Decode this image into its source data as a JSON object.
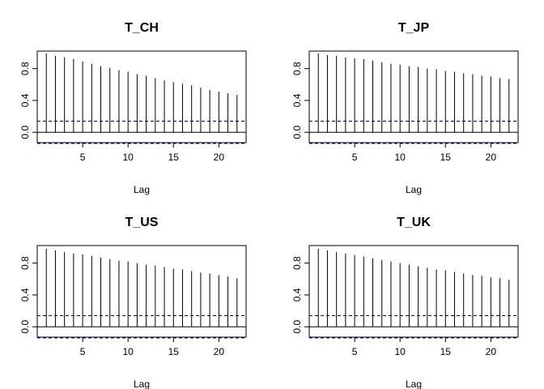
{
  "chart_data": [
    {
      "type": "bar",
      "title": "T_CH",
      "xlabel": "Lag",
      "ylabel": "",
      "xlim": [
        0,
        23
      ],
      "ylim": [
        -0.13,
        1.02
      ],
      "x_ticks": [
        5,
        10,
        15,
        20
      ],
      "y_ticks": [
        0.0,
        0.4,
        0.8
      ],
      "y_tick_labels": [
        "0.0",
        "0.4",
        "0.8"
      ],
      "grid": false,
      "lags": [
        1,
        2,
        3,
        4,
        5,
        6,
        7,
        8,
        9,
        10,
        11,
        12,
        13,
        14,
        15,
        16,
        17,
        18,
        19,
        20,
        21,
        22
      ],
      "values": [
        0.99,
        0.96,
        0.94,
        0.92,
        0.89,
        0.86,
        0.83,
        0.81,
        0.78,
        0.76,
        0.73,
        0.71,
        0.68,
        0.65,
        0.63,
        0.61,
        0.59,
        0.56,
        0.53,
        0.51,
        0.49,
        0.47
      ],
      "confidence_band": [
        0.14,
        -0.14
      ]
    },
    {
      "type": "bar",
      "title": "T_JP",
      "xlabel": "Lag",
      "ylabel": "",
      "xlim": [
        0,
        23
      ],
      "ylim": [
        -0.13,
        1.02
      ],
      "x_ticks": [
        5,
        10,
        15,
        20
      ],
      "y_ticks": [
        0.0,
        0.4,
        0.8
      ],
      "y_tick_labels": [
        "0.0",
        "0.4",
        "0.8"
      ],
      "grid": false,
      "lags": [
        1,
        2,
        3,
        4,
        5,
        6,
        7,
        8,
        9,
        10,
        11,
        12,
        13,
        14,
        15,
        16,
        17,
        18,
        19,
        20,
        21,
        22
      ],
      "values": [
        0.99,
        0.97,
        0.96,
        0.94,
        0.93,
        0.92,
        0.9,
        0.88,
        0.86,
        0.85,
        0.83,
        0.82,
        0.8,
        0.79,
        0.77,
        0.76,
        0.74,
        0.73,
        0.71,
        0.7,
        0.68,
        0.67
      ],
      "confidence_band": [
        0.14,
        -0.14
      ]
    },
    {
      "type": "bar",
      "title": "T_US",
      "xlabel": "Lag",
      "ylabel": "",
      "xlim": [
        0,
        23
      ],
      "ylim": [
        -0.13,
        1.02
      ],
      "x_ticks": [
        5,
        10,
        15,
        20
      ],
      "y_ticks": [
        0.0,
        0.4,
        0.8
      ],
      "y_tick_labels": [
        "0.0",
        "0.4",
        "0.8"
      ],
      "grid": false,
      "lags": [
        1,
        2,
        3,
        4,
        5,
        6,
        7,
        8,
        9,
        10,
        11,
        12,
        13,
        14,
        15,
        16,
        17,
        18,
        19,
        20,
        21,
        22
      ],
      "values": [
        0.98,
        0.96,
        0.94,
        0.92,
        0.91,
        0.89,
        0.87,
        0.85,
        0.83,
        0.82,
        0.8,
        0.78,
        0.77,
        0.75,
        0.73,
        0.72,
        0.7,
        0.68,
        0.67,
        0.65,
        0.63,
        0.61
      ],
      "confidence_band": [
        0.14,
        -0.14
      ]
    },
    {
      "type": "bar",
      "title": "T_UK",
      "xlabel": "Lag",
      "ylabel": "",
      "xlim": [
        0,
        23
      ],
      "ylim": [
        -0.13,
        1.02
      ],
      "x_ticks": [
        5,
        10,
        15,
        20
      ],
      "y_ticks": [
        0.0,
        0.4,
        0.8
      ],
      "y_tick_labels": [
        "0.0",
        "0.4",
        "0.8"
      ],
      "grid": false,
      "lags": [
        1,
        2,
        3,
        4,
        5,
        6,
        7,
        8,
        9,
        10,
        11,
        12,
        13,
        14,
        15,
        16,
        17,
        18,
        19,
        20,
        21,
        22
      ],
      "values": [
        0.98,
        0.96,
        0.94,
        0.92,
        0.9,
        0.88,
        0.86,
        0.84,
        0.82,
        0.8,
        0.78,
        0.76,
        0.74,
        0.72,
        0.71,
        0.69,
        0.67,
        0.65,
        0.64,
        0.62,
        0.61,
        0.59
      ],
      "confidence_band": [
        0.14,
        -0.14
      ]
    }
  ],
  "colors": {
    "bars": "#000000",
    "axes": "#000000",
    "confidence_band": "#00008B"
  }
}
